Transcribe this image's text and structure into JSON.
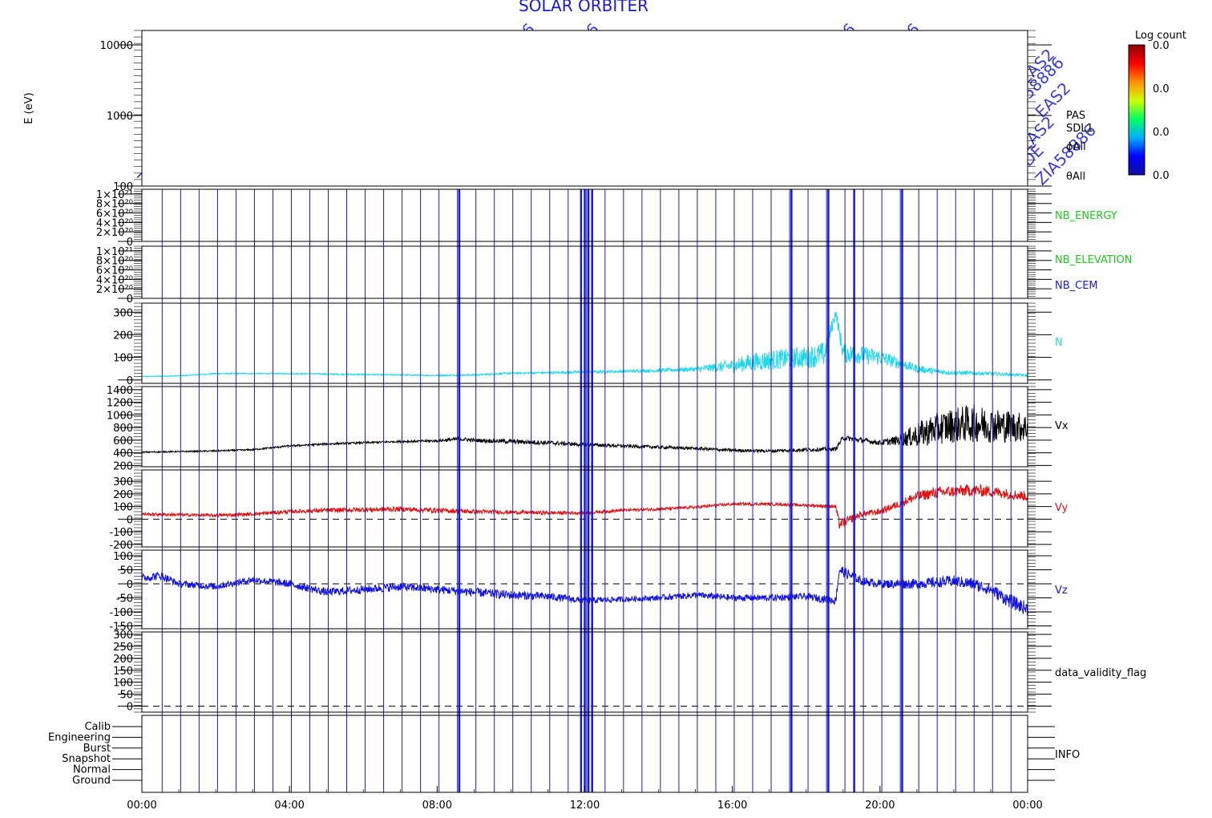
{
  "header": {
    "title": "SOLAR ORBITER",
    "overlay_words": [
      "ZIA58886",
      "EAS2",
      "ENG2",
      "MODE",
      "MODE",
      "EAS2",
      "ENG2",
      "MODE",
      "ZIA58886",
      "EAS2"
    ]
  },
  "colorbar": {
    "label": "Log count",
    "tick_labels": [
      "0.0",
      "0.0",
      "0.0",
      "0.0"
    ],
    "tags": [
      "PAS",
      "SDL1",
      "ϕAll",
      "θAll"
    ],
    "colors": [
      "#1010a0",
      "#0000ff",
      "#00b0ff",
      "#00ff60",
      "#d0ff00",
      "#ff9000",
      "#ff0000",
      "#8a0000"
    ]
  },
  "colors": {
    "event_lines": "#1a1ad0",
    "frame": "#000000",
    "nb_energy": "#1ec81e",
    "nb_elevation": "#1ec81e",
    "nb_cem": "#1a1ad0",
    "N": "#22d8e8",
    "Vx": "#000000",
    "Vy": "#e01010",
    "Vz": "#1010e0",
    "data_validity_flag": "#000000",
    "INFO": "#000000"
  },
  "x_axis": {
    "tick_labels": [
      "00:00",
      "04:00",
      "08:00",
      "12:00",
      "16:00",
      "20:00",
      "00:00"
    ],
    "range_hours": [
      0,
      24
    ]
  },
  "event_lines_hours": [
    0.55,
    1.05,
    1.55,
    2.05,
    2.55,
    3.05,
    3.55,
    4.05,
    4.55,
    5.05,
    5.55,
    6.05,
    6.55,
    7.05,
    7.55,
    8.05,
    8.55,
    9.05,
    9.55,
    10.05,
    10.55,
    11.05,
    11.55,
    12.05,
    12.55,
    13.05,
    13.55,
    14.05,
    14.55,
    15.05,
    15.55,
    16.05,
    16.55,
    17.05,
    17.55,
    18.05,
    18.55,
    19.05,
    19.55,
    20.05,
    20.55,
    21.05,
    21.55,
    22.05,
    22.55,
    23.05,
    23.55
  ],
  "event_lines_thick_hours": [
    8.6,
    11.9,
    12.0,
    12.1,
    12.2,
    17.6,
    18.6,
    19.3,
    20.6
  ],
  "chart_data": [
    {
      "type": "heatmap",
      "ylabel": "E (eV)",
      "y_scale": "log",
      "ylim": [
        100,
        16000
      ],
      "y_ticks": [
        10000,
        1000,
        100
      ],
      "y_tick_labels": [
        "10000",
        "1000",
        "100"
      ],
      "values": []
    },
    {
      "type": "line",
      "ylabel": "",
      "ylim": [
        0,
        1.1e+21
      ],
      "y_ticks": [
        1e+21,
        8e+20,
        6e+20,
        4e+20,
        2e+20,
        0
      ],
      "y_tick_labels": [
        "1×10²¹",
        "8×10²⁰",
        "6×10²⁰",
        "4×10²⁰",
        "2×10²⁰",
        "0"
      ],
      "series": [
        {
          "name": "NB_ENERGY",
          "values": []
        }
      ],
      "zero_dashed": true
    },
    {
      "type": "line",
      "ylabel": "",
      "ylim": [
        0,
        1.1e+21
      ],
      "y_ticks": [
        1e+21,
        8e+20,
        6e+20,
        4e+20,
        2e+20,
        0
      ],
      "y_tick_labels": [
        "1×10²¹",
        "8×10²⁰",
        "6×10²⁰",
        "4×10²⁰",
        "2×10²⁰",
        "0"
      ],
      "series": [
        {
          "name": "NB_ELEVATION",
          "values": []
        },
        {
          "name": "NB_CEM",
          "values": []
        }
      ],
      "zero_dashed": true
    },
    {
      "type": "line",
      "ylim": [
        -15,
        340
      ],
      "y_ticks": [
        300,
        200,
        100,
        0
      ],
      "y_tick_labels": [
        "300",
        "200",
        "100",
        "0"
      ],
      "series": [
        {
          "name": "N",
          "x": [
            0,
            1,
            2,
            3,
            4,
            5,
            6,
            7,
            8,
            9,
            10,
            11,
            12,
            13,
            14,
            15,
            16,
            16.5,
            17,
            17.5,
            18,
            18.5,
            18.8,
            19,
            19.5,
            20,
            20.5,
            21,
            21.5,
            22,
            22.5,
            23,
            23.5,
            24
          ],
          "y": [
            15,
            18,
            28,
            28,
            28,
            26,
            24,
            22,
            20,
            22,
            30,
            32,
            35,
            38,
            42,
            48,
            62,
            78,
            88,
            95,
            100,
            115,
            300,
            120,
            110,
            100,
            75,
            50,
            38,
            32,
            30,
            28,
            24,
            20
          ],
          "noise": [
            2,
            2,
            3,
            3,
            3,
            3,
            3,
            3,
            3,
            4,
            4,
            5,
            6,
            6,
            8,
            10,
            30,
            40,
            45,
            45,
            50,
            55,
            20,
            45,
            40,
            35,
            25,
            18,
            12,
            10,
            9,
            8,
            7,
            5
          ]
        }
      ],
      "zero_dashed": false
    },
    {
      "type": "line",
      "ylim": [
        180,
        1450
      ],
      "y_ticks": [
        1400,
        1200,
        1000,
        800,
        600,
        400,
        200
      ],
      "y_tick_labels": [
        "1400",
        "1200",
        "1000",
        "800",
        "600",
        "400",
        "200"
      ],
      "series": [
        {
          "name": "Vx",
          "x": [
            0,
            1,
            2,
            3,
            4,
            5,
            6,
            7,
            8,
            8.6,
            9,
            10,
            11,
            12,
            13,
            14,
            15,
            16,
            17,
            18,
            18.8,
            19,
            20,
            20.5,
            21,
            21.5,
            22,
            22.5,
            23,
            23.5,
            24
          ],
          "y": [
            410,
            420,
            430,
            450,
            510,
            540,
            560,
            580,
            590,
            620,
            600,
            580,
            560,
            530,
            510,
            490,
            470,
            440,
            430,
            450,
            460,
            640,
            560,
            600,
            680,
            780,
            840,
            870,
            840,
            820,
            800
          ],
          "noise": [
            10,
            10,
            12,
            12,
            15,
            15,
            15,
            15,
            20,
            30,
            30,
            35,
            35,
            30,
            25,
            25,
            25,
            25,
            25,
            30,
            30,
            40,
            40,
            80,
            200,
            250,
            280,
            300,
            280,
            260,
            220
          ]
        }
      ],
      "zero_dashed": false
    },
    {
      "type": "line",
      "ylim": [
        -220,
        390
      ],
      "y_ticks": [
        300,
        200,
        100,
        0,
        -100,
        -200
      ],
      "y_tick_labels": [
        "300",
        "200",
        "100",
        "0",
        "-100",
        "-200"
      ],
      "series": [
        {
          "name": "Vy",
          "x": [
            0,
            1,
            2,
            3,
            4,
            5,
            6,
            7,
            8,
            9,
            10,
            11,
            12,
            13,
            14,
            15,
            16,
            17,
            18,
            18.8,
            18.9,
            19.5,
            20,
            20.5,
            21,
            21.5,
            22,
            22.5,
            23,
            23.5,
            24
          ],
          "y": [
            40,
            35,
            30,
            40,
            60,
            70,
            75,
            80,
            70,
            60,
            55,
            50,
            50,
            70,
            80,
            95,
            120,
            120,
            110,
            100,
            -40,
            40,
            60,
            120,
            180,
            210,
            220,
            230,
            220,
            200,
            180
          ],
          "noise": [
            12,
            12,
            12,
            15,
            15,
            18,
            20,
            20,
            20,
            18,
            15,
            15,
            12,
            12,
            12,
            12,
            12,
            12,
            12,
            15,
            40,
            25,
            25,
            30,
            40,
            45,
            45,
            50,
            45,
            40,
            40
          ]
        }
      ],
      "zero_dashed": true
    },
    {
      "type": "line",
      "ylim": [
        -160,
        120
      ],
      "y_ticks": [
        100,
        50,
        0,
        -50,
        -100,
        -150
      ],
      "y_tick_labels": [
        "100",
        "50",
        "0",
        "-50",
        "-100",
        "-150"
      ],
      "series": [
        {
          "name": "Vz",
          "x": [
            0,
            0.5,
            1,
            2,
            3,
            4,
            5,
            6,
            7,
            8,
            9,
            10,
            11,
            12,
            13,
            14,
            15,
            16,
            17,
            18,
            18.8,
            18.9,
            19.5,
            20,
            21,
            22,
            22.5,
            23,
            23.5,
            24
          ],
          "y": [
            20,
            30,
            0,
            -10,
            15,
            0,
            -30,
            -20,
            -10,
            -20,
            -30,
            -40,
            -45,
            -60,
            -55,
            -50,
            -40,
            -50,
            -50,
            -45,
            -60,
            50,
            10,
            0,
            0,
            10,
            0,
            -20,
            -60,
            -90
          ],
          "noise": [
            15,
            15,
            12,
            12,
            12,
            14,
            14,
            15,
            15,
            15,
            16,
            16,
            14,
            12,
            10,
            10,
            12,
            12,
            12,
            12,
            15,
            20,
            15,
            15,
            18,
            20,
            22,
            22,
            25,
            25
          ]
        }
      ],
      "zero_dashed": true
    },
    {
      "type": "line",
      "ylim": [
        -25,
        310
      ],
      "y_ticks": [
        300,
        250,
        200,
        150,
        100,
        50,
        0
      ],
      "y_tick_labels": [
        "300",
        "250",
        "200",
        "150",
        "100",
        "50",
        "0"
      ],
      "series": [
        {
          "name": "data_validity_flag",
          "values": []
        }
      ],
      "zero_dashed": true
    },
    {
      "type": "table",
      "y_tick_labels": [
        "Calib",
        "Engineering",
        "Burst",
        "Snapshot",
        "Normal",
        "Ground"
      ],
      "series": [
        {
          "name": "INFO",
          "values": []
        }
      ]
    }
  ]
}
